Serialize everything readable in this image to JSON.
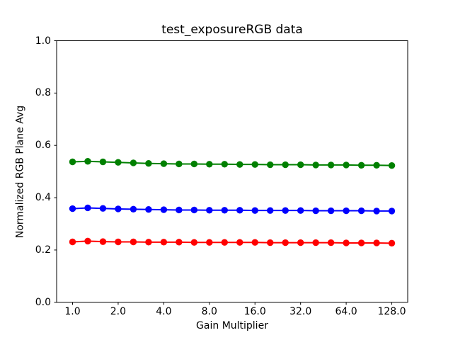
{
  "window": {
    "background_color": "#ffffff"
  },
  "chart_data": {
    "type": "line",
    "title": "test_exposureRGB data",
    "xlabel": "Gain Multiplier",
    "ylabel": "Normalized RGB Plane Avg",
    "xscale": "log",
    "xlim": [
      0.785,
      163.0
    ],
    "ylim": [
      0.0,
      1.0
    ],
    "grid": false,
    "legend": "none",
    "xticks": [
      1.0,
      2.0,
      4.0,
      8.0,
      16.0,
      32.0,
      64.0,
      128.0
    ],
    "xtick_labels": [
      "1.0",
      "2.0",
      "4.0",
      "8.0",
      "16.0",
      "32.0",
      "64.0",
      "128.0"
    ],
    "yticks": [
      0.0,
      0.2,
      0.4,
      0.6,
      0.8,
      1.0
    ],
    "ytick_labels": [
      "0.0",
      "0.2",
      "0.4",
      "0.6",
      "0.8",
      "1.0"
    ],
    "x": [
      1.0,
      1.26,
      1.587,
      2.0,
      2.52,
      3.175,
      4.0,
      5.04,
      6.35,
      8.0,
      10.079,
      12.699,
      16.0,
      20.159,
      25.398,
      32.0,
      40.317,
      50.797,
      64.0,
      80.635,
      101.594,
      128.0
    ],
    "series": [
      {
        "name": "red",
        "color": "#ff0000",
        "marker": "circle",
        "values": [
          0.231,
          0.234,
          0.232,
          0.231,
          0.231,
          0.23,
          0.23,
          0.23,
          0.229,
          0.229,
          0.229,
          0.229,
          0.229,
          0.228,
          0.228,
          0.228,
          0.228,
          0.228,
          0.227,
          0.227,
          0.227,
          0.226
        ]
      },
      {
        "name": "green",
        "color": "#008000",
        "marker": "circle",
        "values": [
          0.537,
          0.539,
          0.537,
          0.535,
          0.533,
          0.531,
          0.53,
          0.529,
          0.529,
          0.528,
          0.528,
          0.527,
          0.527,
          0.526,
          0.526,
          0.526,
          0.525,
          0.525,
          0.525,
          0.524,
          0.524,
          0.523
        ]
      },
      {
        "name": "blue",
        "color": "#0000ff",
        "marker": "circle",
        "values": [
          0.358,
          0.361,
          0.359,
          0.357,
          0.356,
          0.355,
          0.354,
          0.353,
          0.353,
          0.352,
          0.352,
          0.352,
          0.351,
          0.351,
          0.351,
          0.351,
          0.35,
          0.35,
          0.35,
          0.35,
          0.349,
          0.349
        ]
      }
    ]
  }
}
